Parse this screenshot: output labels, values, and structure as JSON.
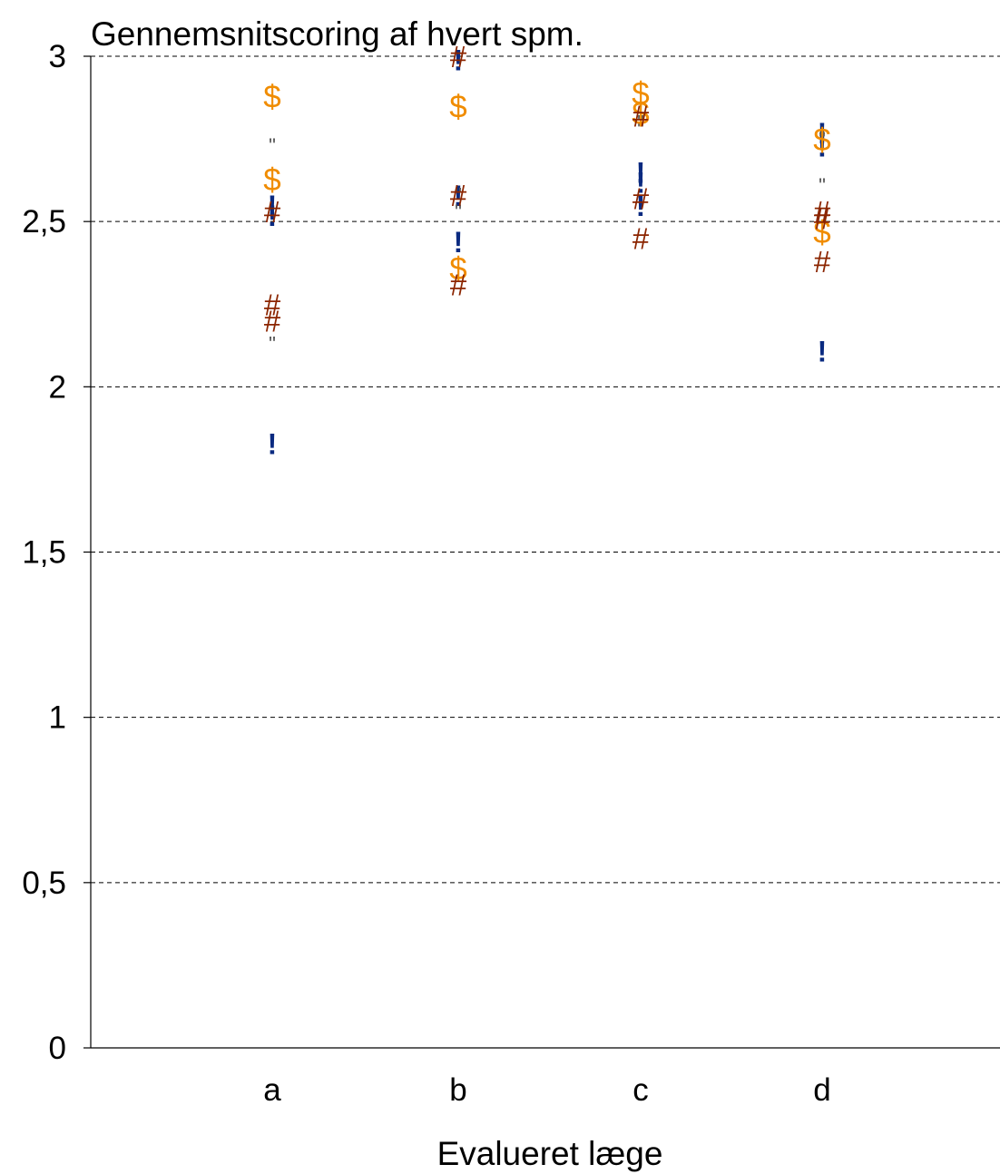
{
  "chart_data": {
    "type": "scatter",
    "title": "Gennemsnitscoring af hvert spm.",
    "xlabel": "Evalueret læge",
    "ylabel": "",
    "categories": [
      "a",
      "b",
      "c",
      "d"
    ],
    "ylim": [
      0,
      3
    ],
    "yticks": [
      {
        "value": 0,
        "label": "0"
      },
      {
        "value": 0.5,
        "label": "0,5"
      },
      {
        "value": 1,
        "label": "1"
      },
      {
        "value": 1.5,
        "label": "1,5"
      },
      {
        "value": 2,
        "label": "2"
      },
      {
        "value": 2.5,
        "label": "2,5"
      },
      {
        "value": 3,
        "label": "3"
      }
    ],
    "grid": true,
    "legend": false,
    "series": [
      {
        "marker": "!",
        "color": "#0a2a80",
        "values": [
          1.83,
          2.58,
          2.62,
          2.11
        ]
      },
      {
        "marker": "!",
        "color": "#0a2a80",
        "values": [
          2.52,
          2.44,
          2.55,
          2.73
        ]
      },
      {
        "marker": "!",
        "color": "#0a2a80",
        "values": [
          2.55,
          2.99,
          2.65,
          2.77
        ]
      },
      {
        "marker": "\"",
        "color": "#555555",
        "values": [
          2.75,
          2.6,
          2.82,
          2.77
        ]
      },
      {
        "marker": "\"",
        "color": "#555555",
        "values": [
          2.15,
          2.55,
          2.8,
          2.63
        ]
      },
      {
        "marker": "$",
        "color": "#f08c00",
        "values": [
          2.88,
          2.85,
          2.89,
          2.75
        ]
      },
      {
        "marker": "$",
        "color": "#f08c00",
        "values": [
          2.63,
          2.36,
          2.83,
          2.47
        ]
      },
      {
        "marker": "#",
        "color": "#8b2500",
        "values": [
          2.53,
          2.58,
          2.82,
          2.53
        ]
      },
      {
        "marker": "#",
        "color": "#8b2500",
        "values": [
          2.25,
          2.31,
          2.57,
          2.51
        ]
      },
      {
        "marker": "#",
        "color": "#8b2500",
        "values": [
          2.2,
          3.0,
          2.45,
          2.38
        ]
      }
    ]
  }
}
